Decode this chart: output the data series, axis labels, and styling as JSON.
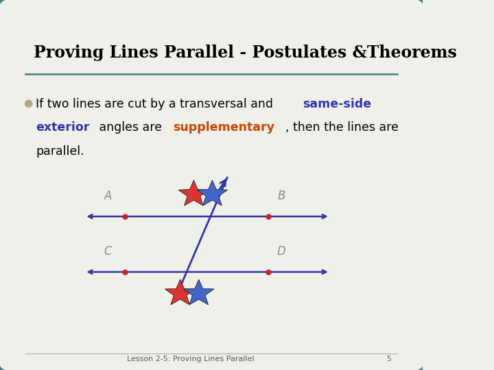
{
  "title": "Proving Lines Parallel - Postulates &Theorems",
  "background_color": "#f0f0eb",
  "border_color": "#4a7a7a",
  "title_color": "#000000",
  "title_fontsize": 17,
  "bullet_color": "#b0aa80",
  "line_color": "#3333aa",
  "dot_color": "#cc2222",
  "label_color": "#888888",
  "footer_text": "Lesson 2-5: Proving Lines Parallel",
  "footer_page": "5",
  "star_red": "#dd3333",
  "star_blue": "#4466cc"
}
